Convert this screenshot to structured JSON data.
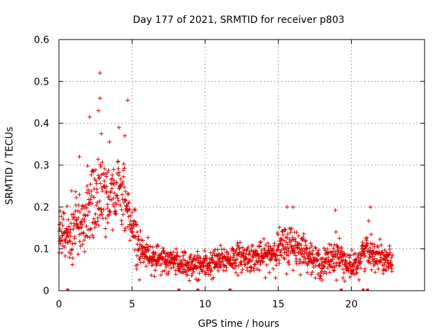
{
  "chart_data": {
    "type": "scatter",
    "title": "Day 177 of 2021, SRMTID for receiver p803",
    "xlabel": "GPS time / hours",
    "ylabel": "SRMTID / TECUs",
    "xlim": [
      0,
      25
    ],
    "ylim": [
      0,
      0.6
    ],
    "x_ticks": [
      0,
      5,
      10,
      15,
      20
    ],
    "x_tick_labels": [
      "0",
      "5",
      "10",
      "15",
      "20"
    ],
    "y_ticks": [
      0,
      0.1,
      0.2,
      0.3,
      0.4,
      0.5,
      0.6
    ],
    "y_tick_labels": [
      "0",
      "0.1",
      "0.2",
      "0.3",
      "0.4",
      "0.5",
      "0.6"
    ],
    "grid": true,
    "marker": "+",
    "series": [
      {
        "name": "SRMTID",
        "color": "#dd0000",
        "x_range": [
          0,
          22.8
        ],
        "n_points": 1400,
        "trend": [
          {
            "x": 0.0,
            "mean": 0.14,
            "spread": 0.05
          },
          {
            "x": 0.5,
            "mean": 0.13,
            "spread": 0.05
          },
          {
            "x": 1.0,
            "mean": 0.15,
            "spread": 0.06
          },
          {
            "x": 1.5,
            "mean": 0.16,
            "spread": 0.07
          },
          {
            "x": 2.0,
            "mean": 0.19,
            "spread": 0.08
          },
          {
            "x": 2.5,
            "mean": 0.22,
            "spread": 0.09
          },
          {
            "x": 3.0,
            "mean": 0.24,
            "spread": 0.1
          },
          {
            "x": 3.5,
            "mean": 0.23,
            "spread": 0.08
          },
          {
            "x": 4.0,
            "mean": 0.24,
            "spread": 0.07
          },
          {
            "x": 4.5,
            "mean": 0.22,
            "spread": 0.07
          },
          {
            "x": 5.0,
            "mean": 0.16,
            "spread": 0.05
          },
          {
            "x": 5.5,
            "mean": 0.1,
            "spread": 0.04
          },
          {
            "x": 6.0,
            "mean": 0.09,
            "spread": 0.03
          },
          {
            "x": 7.0,
            "mean": 0.07,
            "spread": 0.03
          },
          {
            "x": 8.0,
            "mean": 0.07,
            "spread": 0.03
          },
          {
            "x": 9.0,
            "mean": 0.06,
            "spread": 0.03
          },
          {
            "x": 10.0,
            "mean": 0.06,
            "spread": 0.03
          },
          {
            "x": 11.0,
            "mean": 0.07,
            "spread": 0.03
          },
          {
            "x": 12.0,
            "mean": 0.08,
            "spread": 0.03
          },
          {
            "x": 13.0,
            "mean": 0.08,
            "spread": 0.03
          },
          {
            "x": 14.0,
            "mean": 0.08,
            "spread": 0.03
          },
          {
            "x": 15.0,
            "mean": 0.1,
            "spread": 0.04
          },
          {
            "x": 16.0,
            "mean": 0.11,
            "spread": 0.05
          },
          {
            "x": 17.0,
            "mean": 0.09,
            "spread": 0.03
          },
          {
            "x": 18.0,
            "mean": 0.06,
            "spread": 0.03
          },
          {
            "x": 19.0,
            "mean": 0.09,
            "spread": 0.04
          },
          {
            "x": 20.0,
            "mean": 0.05,
            "spread": 0.03
          },
          {
            "x": 21.0,
            "mean": 0.1,
            "spread": 0.04
          },
          {
            "x": 22.0,
            "mean": 0.08,
            "spread": 0.03
          },
          {
            "x": 22.8,
            "mean": 0.08,
            "spread": 0.03
          }
        ],
        "notable_points": [
          {
            "x": 2.8,
            "y": 0.52
          },
          {
            "x": 2.8,
            "y": 0.46
          },
          {
            "x": 4.7,
            "y": 0.455
          },
          {
            "x": 2.1,
            "y": 0.415
          },
          {
            "x": 2.7,
            "y": 0.43
          },
          {
            "x": 2.9,
            "y": 0.375
          },
          {
            "x": 4.1,
            "y": 0.39
          },
          {
            "x": 4.5,
            "y": 0.37
          },
          {
            "x": 1.4,
            "y": 0.32
          },
          {
            "x": 15.6,
            "y": 0.2
          },
          {
            "x": 16.0,
            "y": 0.2
          },
          {
            "x": 18.9,
            "y": 0.192
          },
          {
            "x": 21.3,
            "y": 0.2
          }
        ]
      },
      {
        "name": "zero-value samples",
        "color": "#dd0000",
        "x": [
          0.6,
          8.2,
          9.5,
          11.7,
          19.3,
          20.8,
          21.1
        ],
        "y": [
          0,
          0,
          0,
          0,
          0,
          0,
          0
        ]
      }
    ]
  }
}
